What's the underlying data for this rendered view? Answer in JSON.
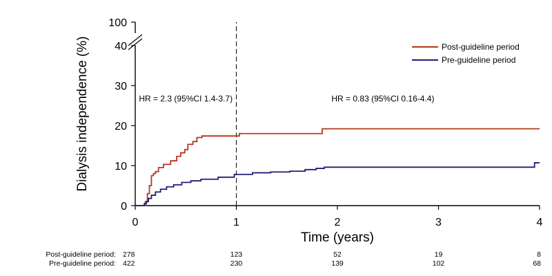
{
  "chart_data": {
    "type": "line",
    "subtype": "kaplan-meier step curve",
    "title": "",
    "xlabel": "Time (years)",
    "ylabel": "Dialysis independence (%)",
    "xlim": [
      0,
      4
    ],
    "ylim_lower": [
      0,
      40
    ],
    "ylim_broken_top": 100,
    "x_ticks": [
      "0",
      "1",
      "2",
      "3",
      "4"
    ],
    "y_ticks": [
      "0",
      "10",
      "20",
      "30",
      "40",
      "100"
    ],
    "axis_break": true,
    "grid": false,
    "legend_position": "top-right",
    "vertical_reference_line": {
      "x": 1,
      "style": "dashed"
    },
    "annotations": [
      {
        "text": "HR = 2.3 (95%CI 1.4-3.7)",
        "x": 0.5,
        "y": 26
      },
      {
        "text": "HR = 0.83 (95%CI 0.16-4.4)",
        "x": 2.45,
        "y": 26
      }
    ],
    "series": [
      {
        "name": "Post-guideline period",
        "color": "#b5381c",
        "points": [
          [
            0,
            0
          ],
          [
            0.08,
            0
          ],
          [
            0.1,
            1
          ],
          [
            0.12,
            3
          ],
          [
            0.14,
            5
          ],
          [
            0.16,
            7.5
          ],
          [
            0.18,
            8
          ],
          [
            0.2,
            8.5
          ],
          [
            0.23,
            9.5
          ],
          [
            0.28,
            10.3
          ],
          [
            0.35,
            11.2
          ],
          [
            0.41,
            12.3
          ],
          [
            0.45,
            13.2
          ],
          [
            0.49,
            14
          ],
          [
            0.52,
            15.3
          ],
          [
            0.57,
            16
          ],
          [
            0.61,
            17
          ],
          [
            0.66,
            17.4
          ],
          [
            1.03,
            18
          ],
          [
            1.85,
            19.2
          ],
          [
            4,
            19.2
          ]
        ]
      },
      {
        "name": "Pre-guideline period",
        "color": "#1e1e78",
        "points": [
          [
            0,
            0
          ],
          [
            0.07,
            0
          ],
          [
            0.09,
            0.5
          ],
          [
            0.11,
            1
          ],
          [
            0.13,
            1.8
          ],
          [
            0.16,
            2.6
          ],
          [
            0.2,
            3.4
          ],
          [
            0.25,
            4.1
          ],
          [
            0.31,
            4.7
          ],
          [
            0.38,
            5.2
          ],
          [
            0.46,
            5.8
          ],
          [
            0.55,
            6.2
          ],
          [
            0.65,
            6.6
          ],
          [
            0.82,
            7.1
          ],
          [
            0.98,
            7.8
          ],
          [
            1.16,
            8.2
          ],
          [
            1.34,
            8.4
          ],
          [
            1.53,
            8.6
          ],
          [
            1.68,
            9
          ],
          [
            1.79,
            9.3
          ],
          [
            1.87,
            9.6
          ],
          [
            3.95,
            10.7
          ],
          [
            4,
            10.7
          ]
        ]
      }
    ]
  },
  "risk_table": {
    "rows": [
      {
        "label": "Post-guideline period:",
        "values": [
          "278",
          "123",
          "52",
          "19",
          "8"
        ]
      },
      {
        "label": "Pre-guideline period:",
        "values": [
          "422",
          "230",
          "139",
          "102",
          "68"
        ]
      }
    ]
  }
}
